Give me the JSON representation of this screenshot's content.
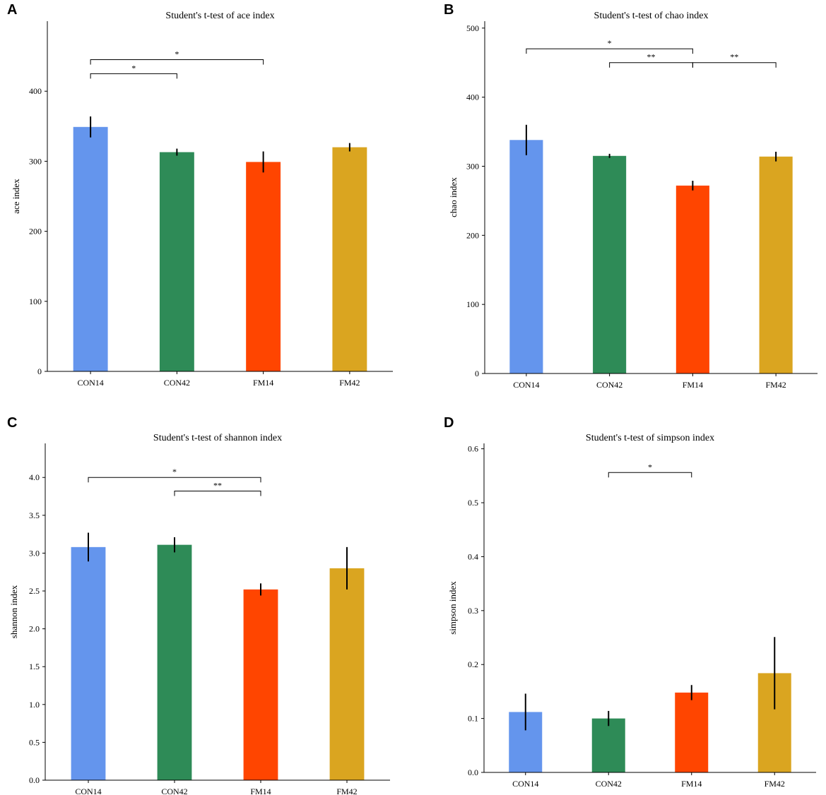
{
  "panels": [
    {
      "letter": "A",
      "chart_data": {
        "type": "bar",
        "title": "Student's t-test of ace index",
        "xlabel": "",
        "ylabel": "ace index",
        "categories": [
          "CON14",
          "CON42",
          "FM14",
          "FM42"
        ],
        "values": [
          349,
          313,
          299,
          320
        ],
        "errors": [
          15,
          5,
          15,
          6
        ],
        "colors": [
          "#6495ED",
          "#2E8B57",
          "#FF4500",
          "#DAA520"
        ],
        "ylim": [
          0,
          500
        ],
        "yticks": [
          0,
          100,
          200,
          300,
          400
        ],
        "ytick_labels": [
          "0",
          "100",
          "200",
          "300",
          "400"
        ],
        "significance": [
          {
            "from": 0,
            "to": 1,
            "y": 425,
            "label": "*"
          },
          {
            "from": 0,
            "to": 2,
            "y": 445,
            "label": "*"
          }
        ]
      }
    },
    {
      "letter": "B",
      "chart_data": {
        "type": "bar",
        "title": "Student's t-test of chao index",
        "xlabel": "",
        "ylabel": "chao index",
        "categories": [
          "CON14",
          "CON42",
          "FM14",
          "FM42"
        ],
        "values": [
          338,
          315,
          272,
          314
        ],
        "errors": [
          22,
          3,
          7,
          7
        ],
        "colors": [
          "#6495ED",
          "#2E8B57",
          "#FF4500",
          "#DAA520"
        ],
        "ylim": [
          0,
          510
        ],
        "yticks": [
          0,
          100,
          200,
          300,
          400,
          500
        ],
        "ytick_labels": [
          "0",
          "100",
          "200",
          "300",
          "400",
          "500"
        ],
        "significance": [
          {
            "from": 0,
            "to": 2,
            "y": 470,
            "label": "*"
          },
          {
            "from": 1,
            "to": 2,
            "y": 450,
            "label": "**"
          },
          {
            "from": 2,
            "to": 3,
            "y": 450,
            "label": "**"
          }
        ]
      }
    },
    {
      "letter": "C",
      "chart_data": {
        "type": "bar",
        "title": "Student's t-test of shannon index",
        "xlabel": "",
        "ylabel": "shannon index",
        "categories": [
          "CON14",
          "CON42",
          "FM14",
          "FM42"
        ],
        "values": [
          3.08,
          3.11,
          2.52,
          2.8
        ],
        "errors": [
          0.19,
          0.1,
          0.08,
          0.28
        ],
        "colors": [
          "#6495ED",
          "#2E8B57",
          "#FF4500",
          "#DAA520"
        ],
        "ylim": [
          0,
          4.45
        ],
        "yticks": [
          0,
          0.5,
          1.0,
          1.5,
          2.0,
          2.5,
          3.0,
          3.5,
          4.0
        ],
        "ytick_labels": [
          "0.0",
          "0.5",
          "1.0",
          "1.5",
          "2.0",
          "2.5",
          "3.0",
          "3.5",
          "4.0"
        ],
        "significance": [
          {
            "from": 0,
            "to": 2,
            "y": 4.0,
            "label": "*"
          },
          {
            "from": 1,
            "to": 2,
            "y": 3.82,
            "label": "**"
          }
        ]
      }
    },
    {
      "letter": "D",
      "chart_data": {
        "type": "bar",
        "title": "Student's t-test of simpson index",
        "xlabel": "",
        "ylabel": "simpson index",
        "categories": [
          "CON14",
          "CON42",
          "FM14",
          "FM42"
        ],
        "values": [
          0.112,
          0.1,
          0.148,
          0.184
        ],
        "errors": [
          0.034,
          0.014,
          0.014,
          0.067
        ],
        "colors": [
          "#6495ED",
          "#2E8B57",
          "#FF4500",
          "#DAA520"
        ],
        "ylim": [
          0,
          0.61
        ],
        "yticks": [
          0,
          0.1,
          0.2,
          0.3,
          0.4,
          0.5,
          0.6
        ],
        "ytick_labels": [
          "0.0",
          "0.1",
          "0.2",
          "0.3",
          "0.4",
          "0.5",
          "0.6"
        ],
        "significance": [
          {
            "from": 1,
            "to": 2,
            "y": 0.556,
            "label": "*"
          }
        ]
      }
    }
  ]
}
